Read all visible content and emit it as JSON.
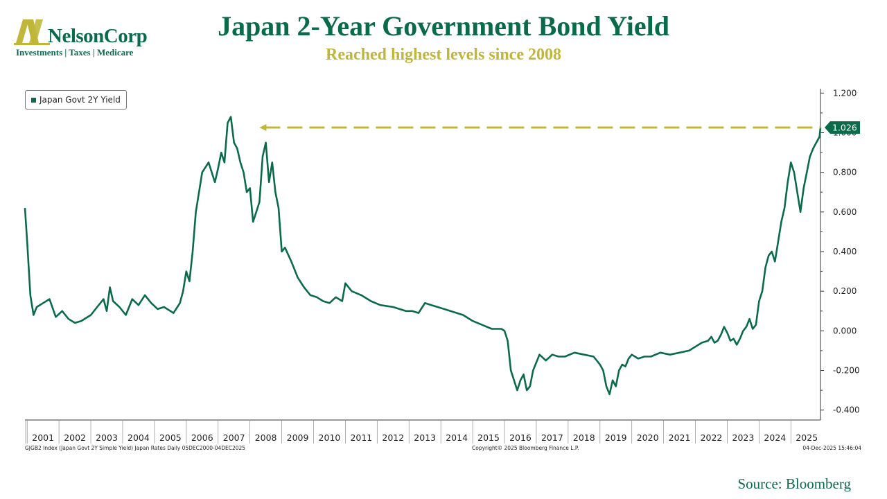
{
  "logo": {
    "name": "NelsonCorp",
    "tagline": "Investments | Taxes | Medicare"
  },
  "title": "Japan 2-Year Government Bond Yield",
  "subtitle": "Reached highest levels since 2008",
  "source": "Source: Bloomberg",
  "footer": {
    "left": "GJGB2 Index (Japan Govt 2Y Simple Yield) Japan Rates Daily 05DEC2000-04DEC2025",
    "center": "Copyright© 2025 Bloomberg Finance L.P.",
    "right": "04-Dec-2025 15:46:04"
  },
  "colors": {
    "line": "#0a6b4a",
    "accent": "#c0b73a",
    "brand": "#0a6b4a"
  },
  "chart_data": {
    "type": "line",
    "title": "Japan 2-Year Government Bond Yield",
    "legend": "Japan Govt 2Y Yield",
    "legend_position": "top-left",
    "x_ticks": [
      "2001",
      "2002",
      "2003",
      "2004",
      "2005",
      "2006",
      "2007",
      "2008",
      "2009",
      "2010",
      "2011",
      "2012",
      "2013",
      "2014",
      "2015",
      "2016",
      "2017",
      "2018",
      "2019",
      "2020",
      "2021",
      "2022",
      "2023",
      "2024",
      "2025"
    ],
    "x_range": [
      2000.93,
      2025.93
    ],
    "y_ticks": [
      "1.200",
      "1.000",
      "0.800",
      "0.600",
      "0.400",
      "0.200",
      "0.000",
      "-0.200",
      "-0.400"
    ],
    "y_range": [
      -0.45,
      1.25
    ],
    "last_value_label": "1.026",
    "reference_line": {
      "value": 1.026,
      "from_x": 2008.3,
      "to_x": 2025.93,
      "style": "dashed-arrow"
    },
    "series": [
      {
        "name": "Japan Govt 2Y Yield",
        "x": [
          2000.93,
          2001.0,
          2001.1,
          2001.2,
          2001.3,
          2001.5,
          2001.7,
          2001.9,
          2002.1,
          2002.3,
          2002.5,
          2002.7,
          2003.0,
          2003.2,
          2003.4,
          2003.5,
          2003.6,
          2003.7,
          2003.9,
          2004.1,
          2004.3,
          2004.5,
          2004.7,
          2004.9,
          2005.1,
          2005.3,
          2005.5,
          2005.6,
          2005.8,
          2005.9,
          2006.0,
          2006.1,
          2006.2,
          2006.3,
          2006.5,
          2006.7,
          2006.9,
          2007.0,
          2007.1,
          2007.2,
          2007.3,
          2007.4,
          2007.5,
          2007.6,
          2007.7,
          2007.8,
          2007.9,
          2008.0,
          2008.1,
          2008.2,
          2008.3,
          2008.4,
          2008.5,
          2008.6,
          2008.7,
          2008.8,
          2008.9,
          2009.0,
          2009.1,
          2009.3,
          2009.5,
          2009.7,
          2009.9,
          2010.1,
          2010.3,
          2010.5,
          2010.7,
          2010.9,
          2011.0,
          2011.2,
          2011.5,
          2011.8,
          2012.1,
          2012.5,
          2012.9,
          2013.1,
          2013.3,
          2013.5,
          2013.7,
          2013.9,
          2014.3,
          2014.7,
          2015.0,
          2015.3,
          2015.6,
          2015.9,
          2016.0,
          2016.1,
          2016.2,
          2016.3,
          2016.4,
          2016.5,
          2016.6,
          2016.7,
          2016.8,
          2016.9,
          2017.1,
          2017.3,
          2017.5,
          2017.7,
          2017.9,
          2018.2,
          2018.5,
          2018.8,
          2019.0,
          2019.1,
          2019.2,
          2019.3,
          2019.4,
          2019.5,
          2019.6,
          2019.7,
          2019.8,
          2019.9,
          2020.0,
          2020.2,
          2020.4,
          2020.6,
          2020.9,
          2021.2,
          2021.5,
          2021.8,
          2022.0,
          2022.2,
          2022.4,
          2022.5,
          2022.6,
          2022.7,
          2022.8,
          2022.9,
          2023.0,
          2023.1,
          2023.2,
          2023.3,
          2023.4,
          2023.5,
          2023.6,
          2023.7,
          2023.8,
          2023.9,
          2024.0,
          2024.1,
          2024.2,
          2024.3,
          2024.4,
          2024.5,
          2024.6,
          2024.7,
          2024.8,
          2024.9,
          2025.0,
          2025.1,
          2025.2,
          2025.3,
          2025.4,
          2025.5,
          2025.6,
          2025.7,
          2025.8,
          2025.9,
          2025.93
        ],
        "values": [
          0.62,
          0.45,
          0.18,
          0.08,
          0.12,
          0.14,
          0.16,
          0.07,
          0.1,
          0.06,
          0.04,
          0.05,
          0.08,
          0.12,
          0.16,
          0.1,
          0.22,
          0.15,
          0.12,
          0.08,
          0.16,
          0.13,
          0.18,
          0.14,
          0.11,
          0.12,
          0.1,
          0.09,
          0.14,
          0.2,
          0.3,
          0.25,
          0.4,
          0.6,
          0.8,
          0.85,
          0.75,
          0.82,
          0.9,
          0.85,
          1.05,
          1.08,
          0.95,
          0.92,
          0.85,
          0.8,
          0.7,
          0.72,
          0.55,
          0.6,
          0.65,
          0.88,
          0.95,
          0.75,
          0.85,
          0.7,
          0.62,
          0.4,
          0.42,
          0.35,
          0.27,
          0.22,
          0.18,
          0.17,
          0.15,
          0.14,
          0.17,
          0.15,
          0.24,
          0.2,
          0.18,
          0.15,
          0.13,
          0.12,
          0.1,
          0.1,
          0.09,
          0.14,
          0.13,
          0.12,
          0.1,
          0.08,
          0.05,
          0.03,
          0.01,
          0.01,
          0.0,
          -0.05,
          -0.2,
          -0.25,
          -0.3,
          -0.25,
          -0.22,
          -0.3,
          -0.28,
          -0.2,
          -0.12,
          -0.15,
          -0.12,
          -0.13,
          -0.13,
          -0.11,
          -0.12,
          -0.13,
          -0.17,
          -0.2,
          -0.28,
          -0.32,
          -0.25,
          -0.28,
          -0.2,
          -0.17,
          -0.18,
          -0.14,
          -0.12,
          -0.14,
          -0.13,
          -0.13,
          -0.11,
          -0.12,
          -0.11,
          -0.1,
          -0.08,
          -0.06,
          -0.05,
          -0.03,
          -0.06,
          -0.05,
          -0.02,
          0.02,
          -0.01,
          -0.05,
          -0.04,
          -0.07,
          -0.04,
          0.0,
          0.02,
          0.06,
          0.01,
          0.03,
          0.15,
          0.2,
          0.32,
          0.38,
          0.4,
          0.35,
          0.45,
          0.55,
          0.62,
          0.75,
          0.85,
          0.8,
          0.7,
          0.6,
          0.72,
          0.8,
          0.88,
          0.92,
          0.95,
          0.98,
          1.026
        ]
      }
    ]
  }
}
